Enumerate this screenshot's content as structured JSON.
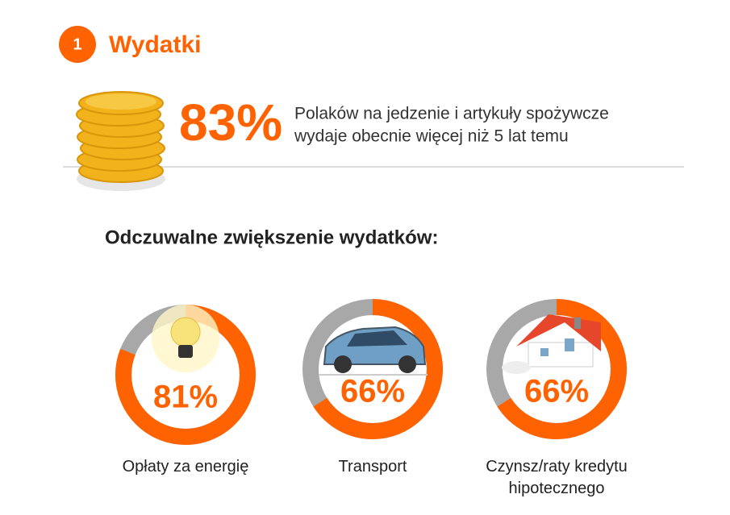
{
  "section": {
    "number": "1",
    "title": "Wydatki"
  },
  "highlight": {
    "value": "83%",
    "lines": [
      "Polaków na jedzenie i artykuły spożywcze",
      "wydaje obecnie więcej niż 5 lat temu"
    ]
  },
  "subtitle": "Odczuwalne zwiększenie wydatków:",
  "chart_data": [
    {
      "type": "donut",
      "categories": [
        "Opłaty za energię"
      ],
      "values": [
        81
      ],
      "value_labels": [
        "81%"
      ],
      "color": "#ff6200",
      "track_color": "#a8a8a8"
    },
    {
      "type": "donut",
      "categories": [
        "Transport"
      ],
      "values": [
        66
      ],
      "value_labels": [
        "66%"
      ],
      "color": "#ff6200",
      "track_color": "#a8a8a8"
    },
    {
      "type": "donut",
      "categories": [
        "Czynsz/raty kredytu hipotecznego"
      ],
      "values": [
        66
      ],
      "value_labels": [
        "66%"
      ],
      "color": "#ff6200",
      "track_color": "#a8a8a8"
    }
  ]
}
